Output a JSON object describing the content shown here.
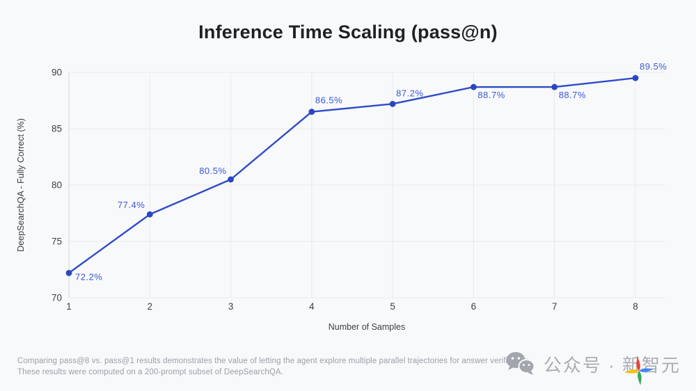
{
  "page": {
    "background": "#f8f9fb"
  },
  "title": "Inference Time Scaling (pass@n)",
  "chart_data": {
    "type": "line",
    "title": "Inference Time Scaling (pass@n)",
    "xlabel": "Number of Samples",
    "ylabel": "DeepSearchQA - Fully Correct (%)",
    "x": [
      1,
      2,
      3,
      4,
      5,
      6,
      7,
      8
    ],
    "values": [
      72.2,
      77.4,
      80.5,
      86.5,
      87.2,
      88.7,
      88.7,
      89.5
    ],
    "point_labels": [
      "72.2%",
      "77.4%",
      "80.5%",
      "86.5%",
      "87.2%",
      "88.7%",
      "88.7%",
      "89.5%"
    ],
    "xticks": [
      "1",
      "2",
      "3",
      "4",
      "5",
      "6",
      "7",
      "8"
    ],
    "yticks": [
      "70",
      "75",
      "80",
      "85",
      "90"
    ],
    "xlim": [
      1,
      8
    ],
    "ylim": [
      70,
      90
    ],
    "grid": true,
    "legend": "none",
    "colors": {
      "line": "#2e4cc7",
      "point": "#2a46c0",
      "point_label": "#3a58d4",
      "grid": "#e7eaee",
      "axis_line": "#d9dde3",
      "tick_text": "#3c4043",
      "axis_title_text": "#3c4043"
    }
  },
  "caption": {
    "line1": "Comparing pass@8 vs. pass@1 results demonstrates the value of letting the agent explore multiple parallel trajectories for answer verification.",
    "line2": "These results were computed on a 200-prompt subset of DeepSearchQA."
  },
  "watermark": {
    "text": "公众号 · 新智元",
    "icons": [
      "wechat-icon",
      "sparkle-star-icon"
    ],
    "icon_color": "#a9aeb4",
    "star_colors": {
      "top": "#ea4335",
      "right": "#4285f4",
      "bottom": "#34a853",
      "left": "#fbbc05"
    }
  }
}
